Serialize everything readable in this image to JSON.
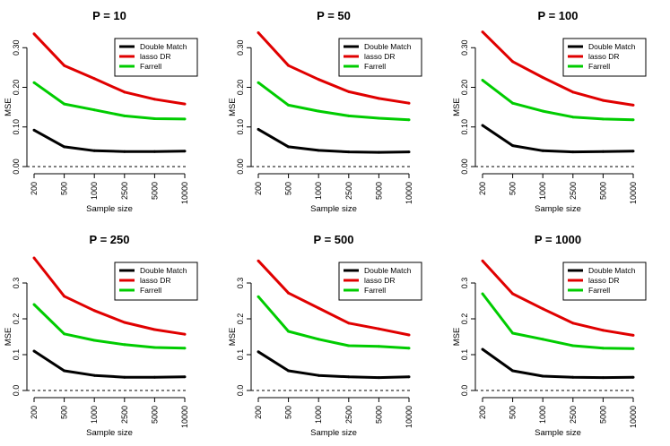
{
  "colors": {
    "double_match": "#000000",
    "lasso_dr": "#e00000",
    "farrell": "#00cc00",
    "axis": "#000000"
  },
  "chart_data": [
    {
      "type": "line",
      "title": "P = 10",
      "xlabel": "Sample size",
      "ylabel": "MSE",
      "categories": [
        "200",
        "500",
        "1000",
        "2500",
        "5000",
        "10000"
      ],
      "yticks": [
        "0.00",
        "0.10",
        "0.20",
        "0.30"
      ],
      "ylim": [
        0,
        0.33
      ],
      "reference_line": 0,
      "legend": "top-right",
      "series": [
        {
          "name": "Double Match",
          "color": "#000000",
          "values": [
            0.092,
            0.05,
            0.04,
            0.038,
            0.038,
            0.039
          ]
        },
        {
          "name": "lasso DR",
          "color": "#e00000",
          "values": [
            0.335,
            0.255,
            0.222,
            0.188,
            0.17,
            0.158
          ]
        },
        {
          "name": "Farrell",
          "color": "#00cc00",
          "values": [
            0.212,
            0.158,
            0.143,
            0.128,
            0.121,
            0.12
          ]
        }
      ]
    },
    {
      "type": "line",
      "title": "P = 50",
      "xlabel": "Sample size",
      "ylabel": "MSE",
      "categories": [
        "200",
        "500",
        "1000",
        "2500",
        "5000",
        "10000"
      ],
      "yticks": [
        "0.00",
        "0.10",
        "0.20",
        "0.30"
      ],
      "ylim": [
        0,
        0.33
      ],
      "reference_line": 0,
      "legend": "top-right",
      "series": [
        {
          "name": "Double Match",
          "color": "#000000",
          "values": [
            0.094,
            0.05,
            0.041,
            0.037,
            0.036,
            0.037
          ]
        },
        {
          "name": "lasso DR",
          "color": "#e00000",
          "values": [
            0.338,
            0.255,
            0.22,
            0.189,
            0.172,
            0.16
          ]
        },
        {
          "name": "Farrell",
          "color": "#00cc00",
          "values": [
            0.212,
            0.155,
            0.14,
            0.128,
            0.122,
            0.118
          ]
        }
      ]
    },
    {
      "type": "line",
      "title": "P = 100",
      "xlabel": "Sample size",
      "ylabel": "MSE",
      "categories": [
        "200",
        "500",
        "1000",
        "2500",
        "5000",
        "10000"
      ],
      "yticks": [
        "0.00",
        "0.10",
        "0.20",
        "0.30"
      ],
      "ylim": [
        0,
        0.33
      ],
      "reference_line": 0,
      "legend": "top-right",
      "series": [
        {
          "name": "Double Match",
          "color": "#000000",
          "values": [
            0.104,
            0.053,
            0.04,
            0.037,
            0.038,
            0.039
          ]
        },
        {
          "name": "lasso DR",
          "color": "#e00000",
          "values": [
            0.34,
            0.265,
            0.225,
            0.188,
            0.167,
            0.155
          ]
        },
        {
          "name": "Farrell",
          "color": "#00cc00",
          "values": [
            0.218,
            0.16,
            0.14,
            0.125,
            0.12,
            0.118
          ]
        }
      ]
    },
    {
      "type": "line",
      "title": "P = 250",
      "xlabel": "Sample size",
      "ylabel": "MSE",
      "categories": [
        "200",
        "500",
        "1000",
        "2500",
        "5000",
        "10000"
      ],
      "yticks": [
        "0.0",
        "0.1",
        "0.2",
        "0.3"
      ],
      "ylim": [
        0,
        0.37
      ],
      "reference_line": 0,
      "legend": "top-right",
      "series": [
        {
          "name": "Double Match",
          "color": "#000000",
          "values": [
            0.11,
            0.055,
            0.042,
            0.037,
            0.037,
            0.038
          ]
        },
        {
          "name": "lasso DR",
          "color": "#e00000",
          "values": [
            0.37,
            0.263,
            0.223,
            0.19,
            0.17,
            0.157
          ]
        },
        {
          "name": "Farrell",
          "color": "#00cc00",
          "values": [
            0.24,
            0.158,
            0.14,
            0.128,
            0.12,
            0.118
          ]
        }
      ]
    },
    {
      "type": "line",
      "title": "P = 500",
      "xlabel": "Sample size",
      "ylabel": "MSE",
      "categories": [
        "200",
        "500",
        "1000",
        "2500",
        "5000",
        "10000"
      ],
      "yticks": [
        "0.0",
        "0.1",
        "0.2",
        "0.3"
      ],
      "ylim": [
        0,
        0.37
      ],
      "reference_line": 0,
      "legend": "top-right",
      "series": [
        {
          "name": "Double Match",
          "color": "#000000",
          "values": [
            0.108,
            0.055,
            0.042,
            0.038,
            0.036,
            0.038
          ]
        },
        {
          "name": "lasso DR",
          "color": "#e00000",
          "values": [
            0.362,
            0.272,
            0.23,
            0.188,
            0.172,
            0.155
          ]
        },
        {
          "name": "Farrell",
          "color": "#00cc00",
          "values": [
            0.262,
            0.165,
            0.143,
            0.125,
            0.123,
            0.118
          ]
        }
      ]
    },
    {
      "type": "line",
      "title": "P = 1000",
      "xlabel": "Sample size",
      "ylabel": "MSE",
      "categories": [
        "200",
        "500",
        "1000",
        "2500",
        "5000",
        "10000"
      ],
      "yticks": [
        "0.0",
        "0.1",
        "0.2",
        "0.3"
      ],
      "ylim": [
        0,
        0.37
      ],
      "reference_line": 0,
      "legend": "top-right",
      "series": [
        {
          "name": "Double Match",
          "color": "#000000",
          "values": [
            0.115,
            0.055,
            0.04,
            0.037,
            0.036,
            0.037
          ]
        },
        {
          "name": "lasso DR",
          "color": "#e00000",
          "values": [
            0.362,
            0.27,
            0.228,
            0.188,
            0.168,
            0.154
          ]
        },
        {
          "name": "Farrell",
          "color": "#00cc00",
          "values": [
            0.27,
            0.16,
            0.143,
            0.125,
            0.118,
            0.117
          ]
        }
      ]
    }
  ]
}
